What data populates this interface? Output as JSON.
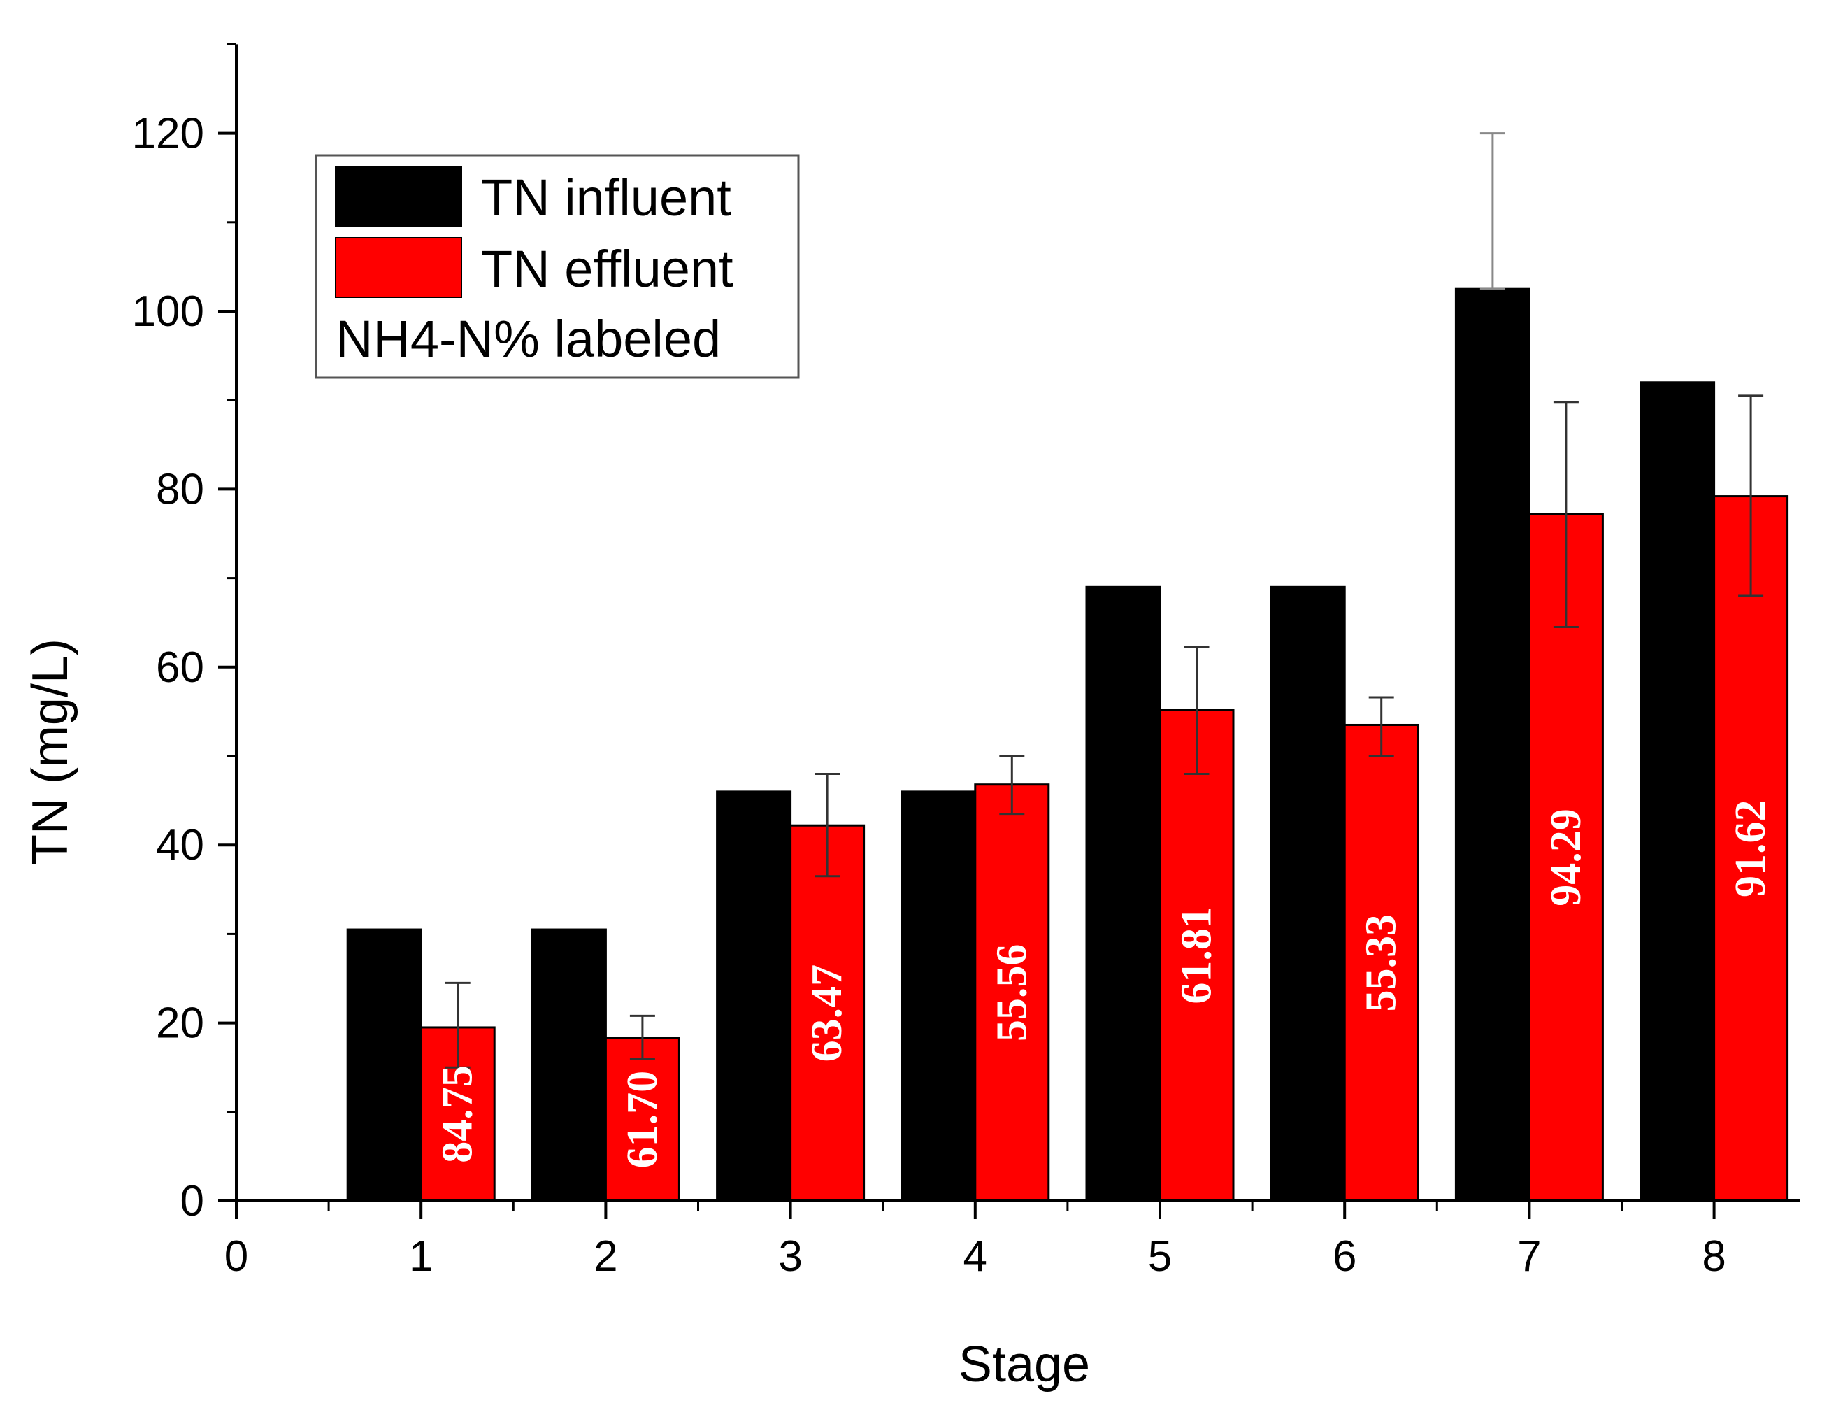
{
  "chart_data": {
    "type": "bar",
    "title": "",
    "xlabel": "Stage",
    "ylabel": "TN (mg/L)",
    "xlim": [
      0,
      8.5
    ],
    "ylim": [
      0,
      130
    ],
    "x_ticks": [
      0,
      1,
      2,
      3,
      4,
      5,
      6,
      7,
      8
    ],
    "y_ticks": [
      0,
      20,
      40,
      60,
      80,
      100,
      120
    ],
    "categories": [
      1,
      2,
      3,
      4,
      5,
      6,
      7,
      8
    ],
    "series": [
      {
        "name": "TN influent",
        "color": "#000000",
        "values": [
          30.5,
          30.5,
          46,
          46,
          69,
          69,
          102.5,
          92
        ],
        "errors_upper": [
          null,
          null,
          null,
          null,
          null,
          null,
          120,
          null
        ],
        "errors_lower": [
          null,
          null,
          null,
          null,
          null,
          null,
          102.5,
          null
        ]
      },
      {
        "name": "TN effluent",
        "color": "#ff0000",
        "values": [
          19.5,
          18.3,
          42.2,
          46.8,
          55.2,
          53.5,
          77.2,
          79.2
        ],
        "errors_upper": [
          24.5,
          20.8,
          48,
          50,
          62.3,
          56.6,
          89.8,
          90.5
        ],
        "errors_lower": [
          15,
          16,
          36.5,
          43.5,
          48,
          50,
          64.5,
          68
        ]
      }
    ],
    "bar_labels": [
      "84.75",
      "61.70",
      "63.47",
      "55.56",
      "61.81",
      "55.33",
      "94.29",
      "91.62"
    ],
    "legend": {
      "position": "top-left",
      "entries": [
        "TN influent",
        "TN effluent"
      ],
      "note": "NH4-N% labeled"
    },
    "grid": false
  }
}
